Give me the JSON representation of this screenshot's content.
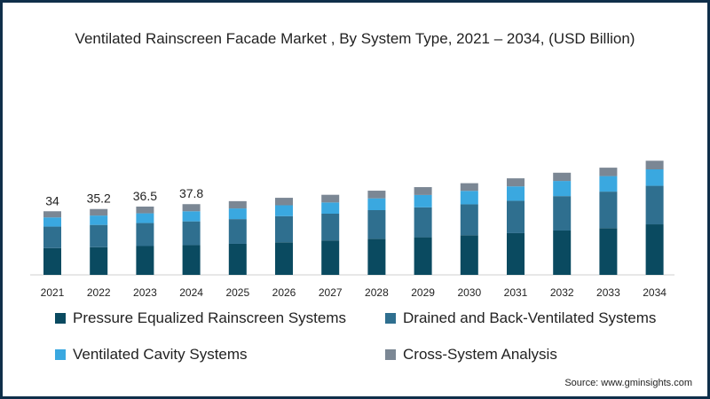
{
  "chart_data": {
    "type": "bar",
    "stacked": true,
    "title": "Ventilated Rainscreen Facade Market , By System Type, 2021 – 2034, (USD Billion)",
    "categories": [
      "2021",
      "2022",
      "2023",
      "2024",
      "2025",
      "2026",
      "2027",
      "2028",
      "2029",
      "2030",
      "2031",
      "2032",
      "2033",
      "2034"
    ],
    "series": [
      {
        "name": "Pressure Equalized Rainscreen Systems",
        "color": "#0a4a60",
        "values": [
          14.3,
          14.8,
          15.4,
          15.9,
          16.6,
          17.4,
          18.4,
          19.3,
          20.1,
          21.2,
          22.3,
          23.7,
          25.0,
          27.0
        ]
      },
      {
        "name": "Drained and Back-Ventilated Systems",
        "color": "#2f6f8f",
        "values": [
          11.5,
          11.9,
          12.3,
          12.7,
          13.2,
          14.0,
          14.3,
          15.3,
          16.0,
          16.5,
          17.3,
          18.4,
          19.5,
          20.6
        ]
      },
      {
        "name": "Ventilated Cavity Systems",
        "color": "#3aa8e0",
        "values": [
          4.9,
          5.0,
          5.2,
          5.4,
          5.7,
          5.8,
          6.0,
          6.3,
          6.6,
          7.2,
          7.7,
          8.1,
          8.3,
          8.8
        ]
      },
      {
        "name": "Cross-System Analysis",
        "color": "#7b8794",
        "values": [
          3.3,
          3.5,
          3.6,
          3.8,
          3.9,
          4.0,
          4.1,
          4.1,
          4.2,
          4.1,
          4.3,
          4.4,
          4.5,
          4.6
        ]
      }
    ],
    "totals_labels": [
      "34",
      "35.2",
      "36.5",
      "37.8"
    ],
    "ylim": [
      0,
      70
    ],
    "legend_position": "bottom"
  },
  "source": "Source: www.gminsights.com"
}
